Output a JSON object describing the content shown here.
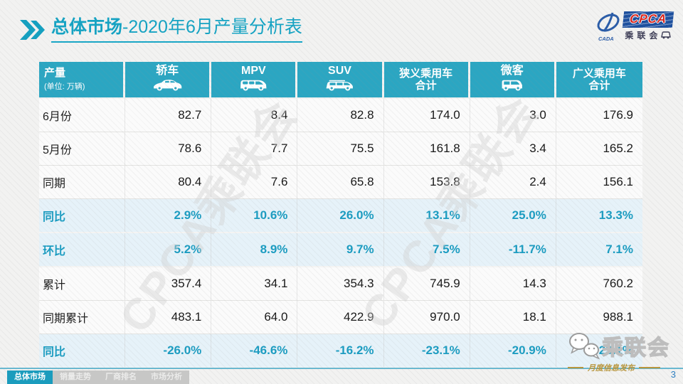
{
  "title": {
    "highlight": "总体市场",
    "rest": "-2020年6月产量分析表"
  },
  "logo": {
    "en": "CPCA",
    "cn": "乘联会",
    "sub": "CADA"
  },
  "watermark": {
    "text": "CPCA乘联会"
  },
  "table": {
    "header": {
      "label": "产量",
      "unit": "(单位: 万辆)",
      "columns": [
        {
          "label": "轿车",
          "icon": "sedan-icon"
        },
        {
          "label": "MPV",
          "icon": "mpv-icon"
        },
        {
          "label": "SUV",
          "icon": "suv-icon"
        },
        {
          "label": "狭义乘用车",
          "label2": "合计"
        },
        {
          "label": "微客",
          "icon": "microvan-icon"
        },
        {
          "label": "广义乘用车",
          "label2": "合计"
        }
      ]
    },
    "rows": [
      {
        "label": "6月份",
        "type": "normal",
        "values": [
          "82.7",
          "8.4",
          "82.8",
          "174.0",
          "3.0",
          "176.9"
        ]
      },
      {
        "label": "5月份",
        "type": "normal",
        "values": [
          "78.6",
          "7.7",
          "75.5",
          "161.8",
          "3.4",
          "165.2"
        ]
      },
      {
        "label": "同期",
        "type": "normal",
        "values": [
          "80.4",
          "7.6",
          "65.8",
          "153.8",
          "2.4",
          "156.1"
        ]
      },
      {
        "label": "同比",
        "type": "highlight",
        "values": [
          "2.9%",
          "10.6%",
          "26.0%",
          "13.1%",
          "25.0%",
          "13.3%"
        ]
      },
      {
        "label": "环比",
        "type": "highlight",
        "values": [
          "5.2%",
          "8.9%",
          "9.7%",
          "7.5%",
          "-11.7%",
          "7.1%"
        ]
      },
      {
        "label": "累计",
        "type": "normal",
        "values": [
          "357.4",
          "34.1",
          "354.3",
          "745.9",
          "14.3",
          "760.2"
        ]
      },
      {
        "label": "同期累计",
        "type": "normal",
        "values": [
          "483.1",
          "64.0",
          "422.9",
          "970.0",
          "18.1",
          "988.1"
        ]
      },
      {
        "label": "同比",
        "type": "highlight",
        "values": [
          "-26.0%",
          "-46.6%",
          "-16.2%",
          "-23.1%",
          "-20.9%",
          "-23.1%"
        ]
      }
    ]
  },
  "footer": {
    "tabs": [
      {
        "label": "总体市场",
        "active": true
      },
      {
        "label": "销量走势",
        "active": false
      },
      {
        "label": "厂商排名",
        "active": false
      },
      {
        "label": "市场分析",
        "active": false
      }
    ],
    "stamp": "乘联会",
    "publish": "月度信息发布",
    "page": "3"
  },
  "colors": {
    "accent_teal": "#14a3c3",
    "header_bg": "#2ba6c2",
    "highlight_text": "#1b9cc1",
    "highlight_row_bg": "#e6f2f9",
    "tab_active_bg": "#1b9cbd",
    "footer_line": "#69b8d0",
    "page_number_blue": "#2e7fc1",
    "publish_gold": "#b8963e",
    "logo_blue": "#1c4f9e",
    "logo_red": "#d8251d"
  }
}
